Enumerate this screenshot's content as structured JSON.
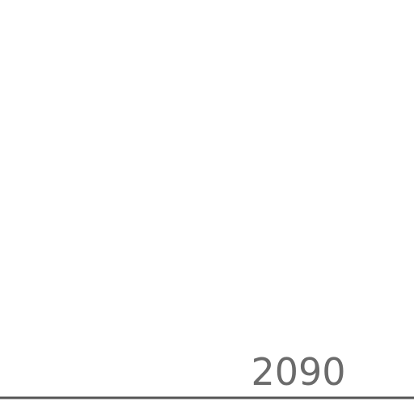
{
  "chart_data": {
    "type": "line",
    "title": "",
    "xlabel": "",
    "ylabel": "",
    "x_ticks": [
      "2090"
    ],
    "series": [],
    "grid": false,
    "legend": "none",
    "axis_color": "#555555",
    "tick_label_color": "#6b6b6b"
  }
}
